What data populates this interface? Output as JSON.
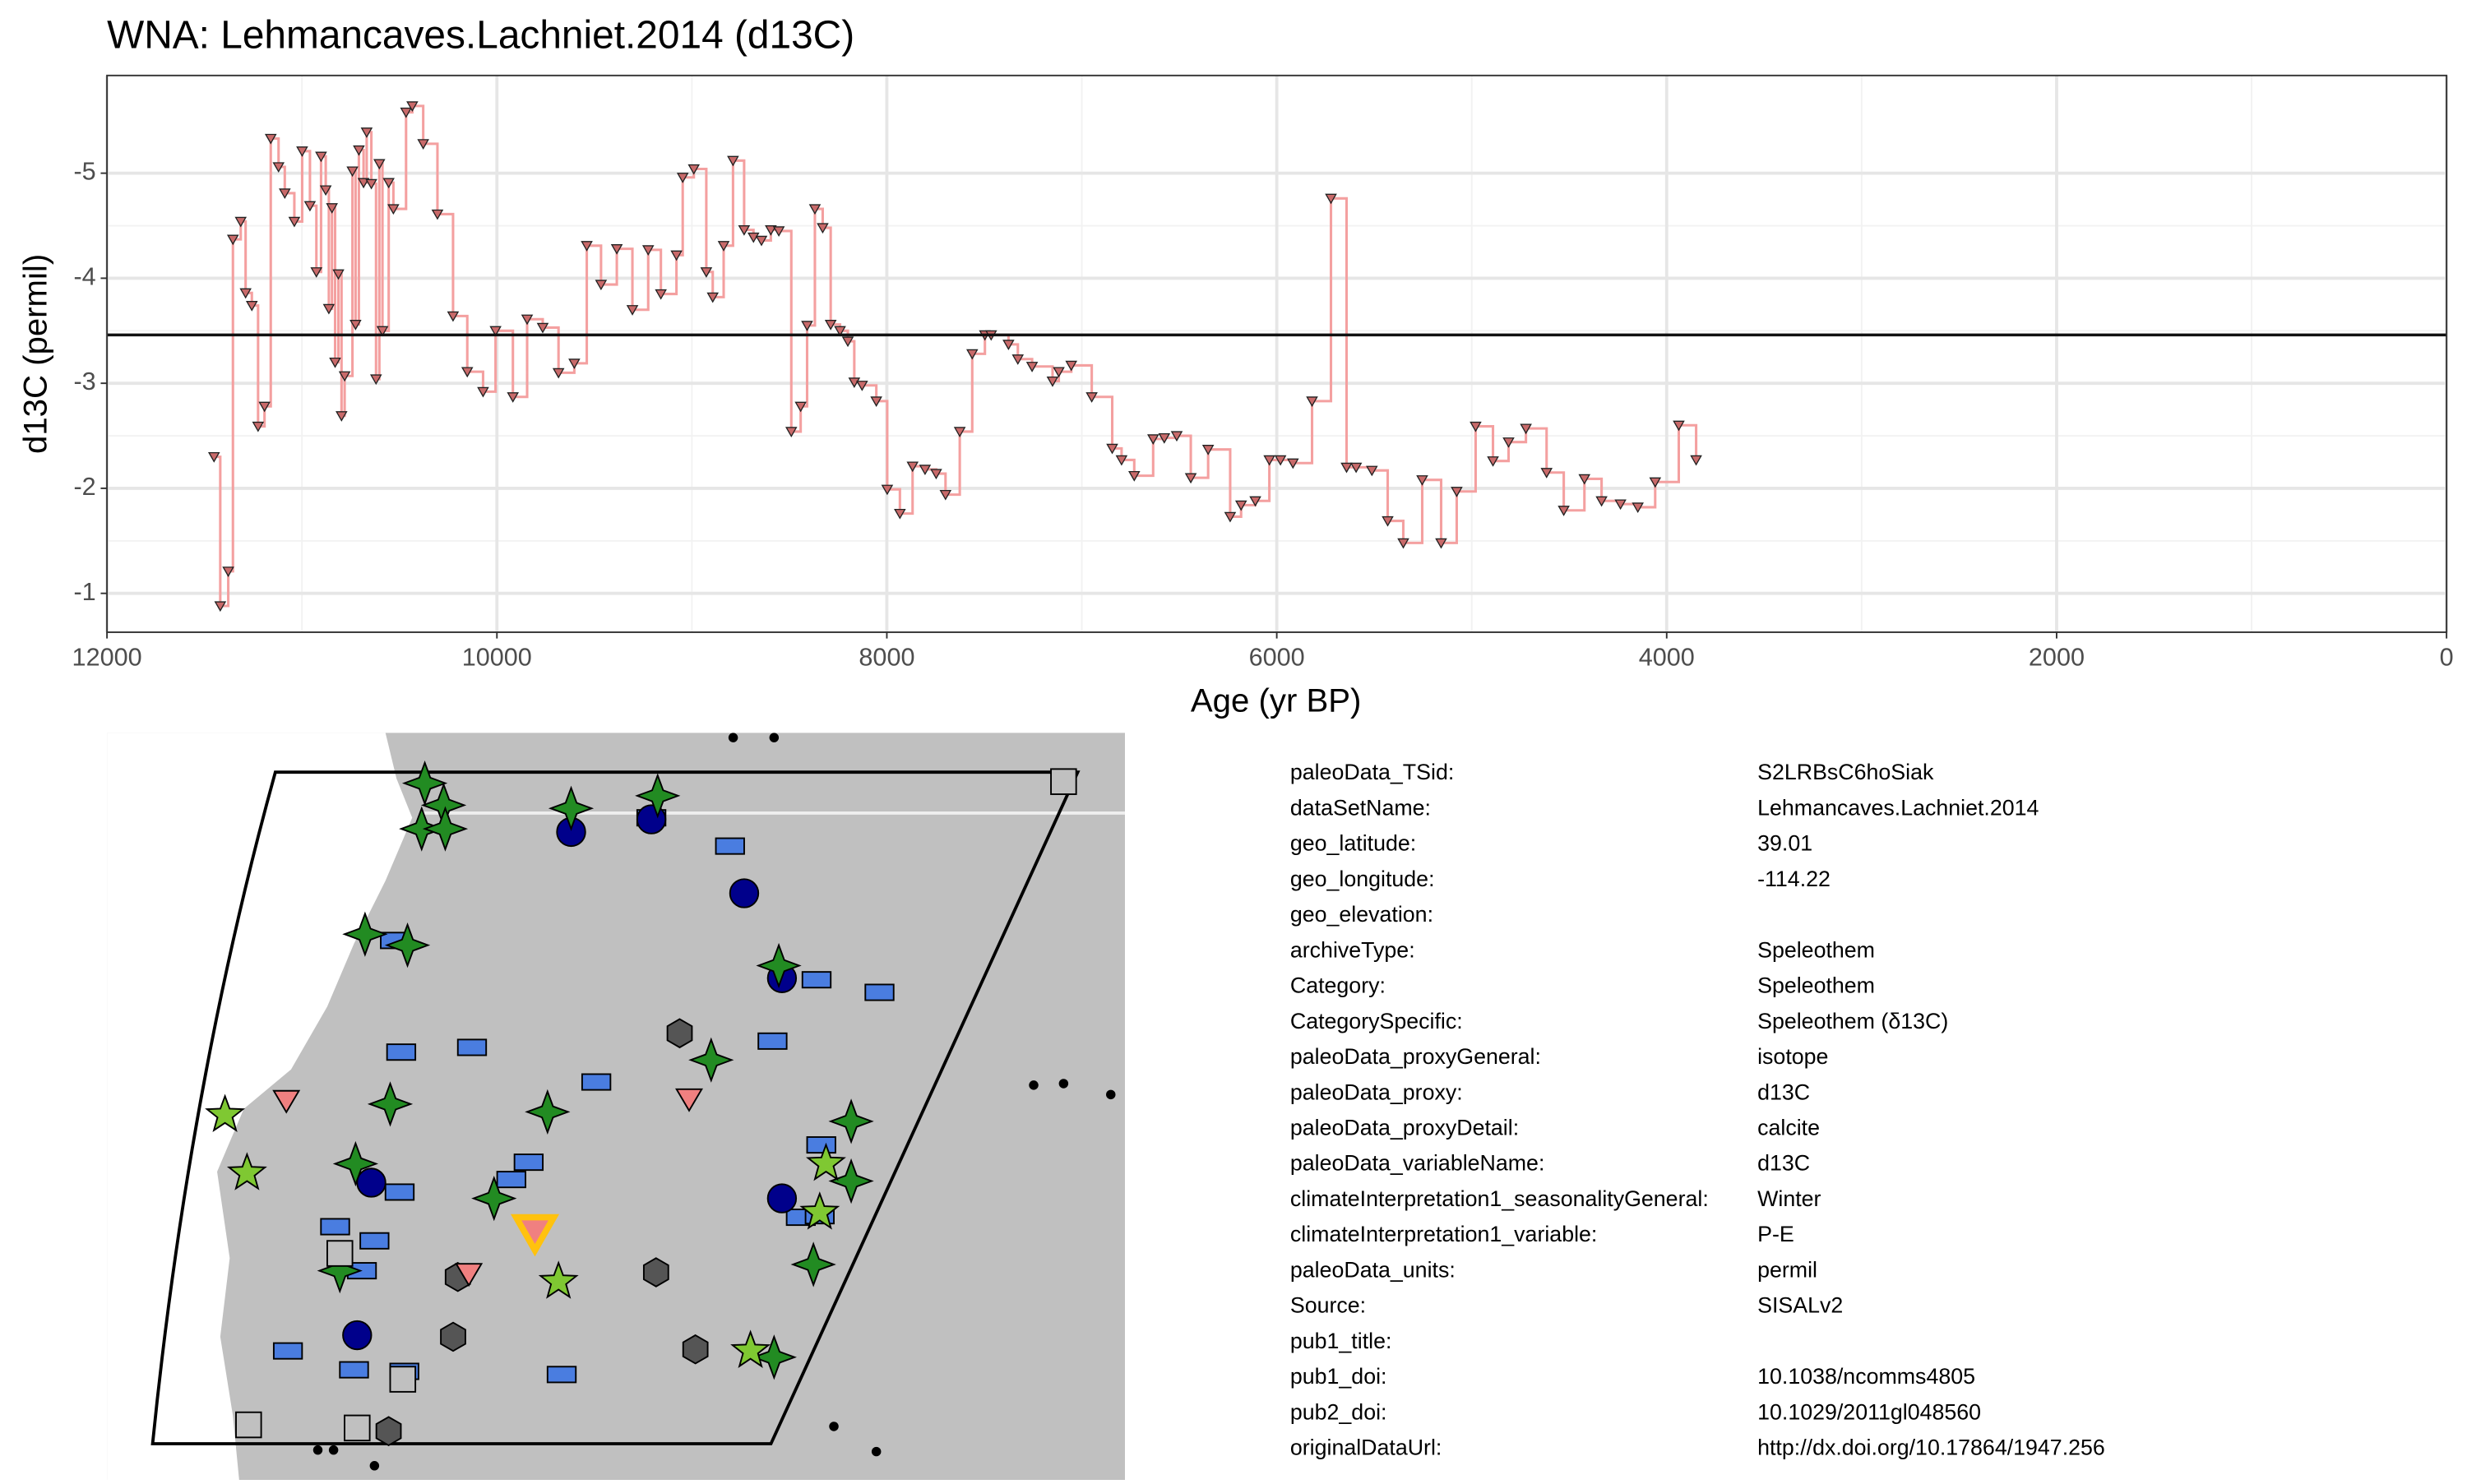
{
  "chart_data": {
    "type": "line",
    "step": true,
    "title": "WNA: Lehmancaves.Lachniet.2014 (d13C)",
    "x_label": "Age (yr BP)",
    "y_label": "d13C (permil)",
    "x": [
      11451,
      11419,
      11378,
      11354,
      11314,
      11289,
      11257,
      11225,
      11192,
      11160,
      11120,
      11088,
      11039,
      10999,
      10959,
      10926,
      10902,
      10878,
      10862,
      10846,
      10830,
      10813,
      10797,
      10781,
      10741,
      10725,
      10708,
      10684,
      10668,
      10644,
      10620,
      10603,
      10587,
      10555,
      10531,
      10466,
      10434,
      10378,
      10305,
      10225,
      10152,
      10071,
      10007,
      9918,
      9845,
      9765,
      9684,
      9603,
      9539,
      9466,
      9385,
      9305,
      9224,
      9159,
      9079,
      9047,
      8990,
      8926,
      8893,
      8837,
      8789,
      8732,
      8684,
      8643,
      8595,
      8554,
      8490,
      8442,
      8409,
      8369,
      8329,
      8288,
      8240,
      8200,
      8167,
      8127,
      8054,
      7998,
      7933,
      7868,
      7804,
      7747,
      7699,
      7626,
      7562,
      7497,
      7465,
      7376,
      7328,
      7255,
      7150,
      7118,
      7054,
      6949,
      6844,
      6796,
      6731,
      6634,
      6577,
      6513,
      6441,
      6352,
      6239,
      6183,
      6110,
      6038,
      5981,
      5917,
      5819,
      5722,
      5642,
      5593,
      5512,
      5431,
      5351,
      5254,
      5157,
      5077,
      4980,
      4891,
      4811,
      4722,
      4616,
      4528,
      4422,
      4334,
      4237,
      4148,
      4059,
      3938,
      3849
    ],
    "values": [
      -2.3,
      -0.88,
      -1.21,
      -4.37,
      -4.54,
      -3.86,
      -3.74,
      -2.59,
      -2.78,
      -5.33,
      -5.06,
      -4.81,
      -4.54,
      -5.21,
      -4.69,
      -4.06,
      -5.16,
      -4.84,
      -3.71,
      -4.67,
      -3.2,
      -4.04,
      -2.69,
      -3.07,
      -5.02,
      -3.56,
      -5.22,
      -4.91,
      -5.39,
      -4.9,
      -3.04,
      -5.09,
      -3.5,
      -4.91,
      -4.66,
      -5.58,
      -5.64,
      -5.28,
      -4.61,
      -3.64,
      -3.11,
      -2.92,
      -3.5,
      -2.87,
      -3.61,
      -3.53,
      -3.1,
      -3.19,
      -4.31,
      -3.94,
      -4.28,
      -3.7,
      -4.27,
      -3.85,
      -4.22,
      -4.96,
      -5.04,
      -4.06,
      -3.82,
      -4.31,
      -5.12,
      -4.46,
      -4.39,
      -4.36,
      -4.46,
      -4.45,
      -2.54,
      -2.78,
      -3.55,
      -4.66,
      -4.48,
      -3.56,
      -3.5,
      -3.4,
      -3.01,
      -2.98,
      -2.83,
      -1.99,
      -1.76,
      -2.21,
      -2.18,
      -2.14,
      -1.94,
      -2.54,
      -3.28,
      -3.46,
      -3.46,
      -3.37,
      -3.23,
      -3.16,
      -3.02,
      -3.11,
      -3.17,
      -2.87,
      -2.38,
      -2.27,
      -2.12,
      -2.47,
      -2.48,
      -2.5,
      -2.1,
      -2.37,
      -1.73,
      -1.84,
      -1.88,
      -2.27,
      -2.27,
      -2.24,
      -2.83,
      -4.76,
      -2.2,
      -2.2,
      -2.17,
      -1.69,
      -1.48,
      -2.08,
      -1.48,
      -1.97,
      -2.59,
      -2.26,
      -2.44,
      -2.57,
      -2.15,
      -1.79,
      -2.09,
      -1.88,
      -1.85,
      -1.82,
      -2.06,
      -2.6,
      -2.27
    ],
    "color": "#f4a0a0",
    "marker_color": "#c96a6a",
    "hline": -3.46,
    "xlim": [
      12000,
      0
    ],
    "xticks": [
      12000,
      10000,
      8000,
      6000,
      4000,
      2000,
      0
    ],
    "ylim": [
      -0.63,
      -5.93
    ],
    "yticks": [
      -5,
      -4,
      -3,
      -2,
      -1
    ],
    "grid": true
  },
  "metadata": {
    "rows": [
      [
        "paleoData_TSid:",
        "S2LRBsC6hoSiak"
      ],
      [
        "dataSetName:",
        "Lehmancaves.Lachniet.2014"
      ],
      [
        "geo_latitude:",
        "39.01"
      ],
      [
        "geo_longitude:",
        "-114.22"
      ],
      [
        "geo_elevation:"
      ],
      [
        "archiveType:",
        "Speleothem"
      ],
      [
        "Category:",
        "Speleothem"
      ],
      [
        "CategorySpecific:",
        "Speleothem (δ13C)"
      ],
      [
        "paleoData_proxyGeneral:",
        "isotope"
      ],
      [
        "paleoData_proxy:",
        "d13C"
      ],
      [
        "paleoData_proxyDetail:",
        "calcite"
      ],
      [
        "paleoData_variableName:",
        "d13C"
      ],
      [
        "climateInterpretation1_seasonalityGeneral:",
        "Winter"
      ],
      [
        "climateInterpretation1_variable:",
        "P-E"
      ],
      [
        "paleoData_units:",
        "permil"
      ],
      [
        "Source:",
        "SISALv2"
      ],
      [
        "pub1_title:"
      ],
      [
        "pub1_doi:",
        "10.1038/ncomms4805"
      ],
      [
        "pub2_doi:",
        "10.1029/2011gl048560"
      ],
      [
        "originalDataUrl:",
        "http://dx.doi.org/10.17864/1947.256"
      ]
    ]
  }
}
